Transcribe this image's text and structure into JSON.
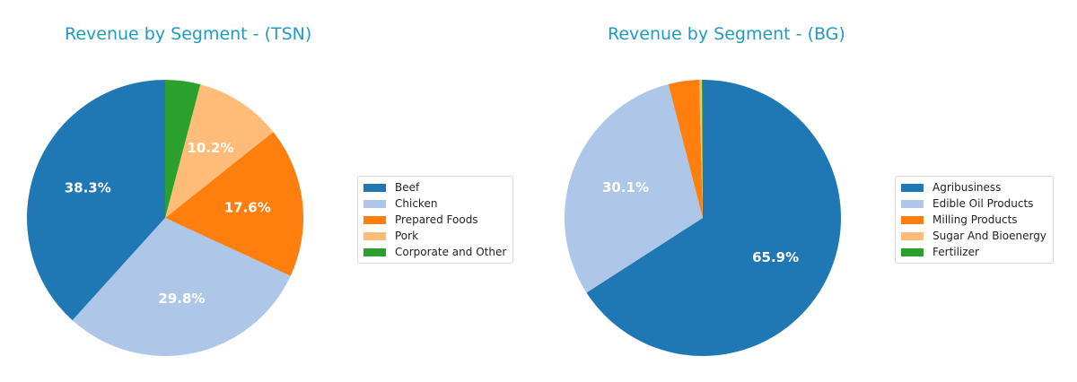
{
  "chart_data": [
    {
      "type": "pie",
      "title": "Revenue by Segment - (TSN)",
      "categories": [
        "Beef",
        "Chicken",
        "Prepared Foods",
        "Pork",
        "Corporate and Other"
      ],
      "values": [
        38.3,
        29.8,
        17.6,
        10.2,
        4.1
      ],
      "labels_shown": [
        "38.3%",
        "29.8%",
        "17.6%",
        "10.2%",
        ""
      ],
      "colors": [
        "#1f77b4",
        "#aec7e8",
        "#ff7f0e",
        "#ffbb78",
        "#2ca02c"
      ],
      "start_angle": 90,
      "direction": "counterclockwise",
      "legend_position": "right"
    },
    {
      "type": "pie",
      "title": "Revenue by Segment - (BG)",
      "categories": [
        "Agribusiness",
        "Edible Oil Products",
        "Milling Products",
        "Sugar And Bioenergy",
        "Fertilizer"
      ],
      "values": [
        65.9,
        30.1,
        3.6,
        0.3,
        0.1
      ],
      "labels_shown": [
        "65.9%",
        "30.1%",
        "",
        "",
        ""
      ],
      "colors": [
        "#1f77b4",
        "#aec7e8",
        "#ff7f0e",
        "#ffbb78",
        "#2ca02c"
      ],
      "start_angle": 90,
      "direction": "clockwise",
      "legend_position": "right"
    }
  ],
  "titles": {
    "left": "Revenue by Segment - (TSN)",
    "right": "Revenue by Segment - (BG)"
  },
  "legend_left": [
    "Beef",
    "Chicken",
    "Prepared Foods",
    "Pork",
    "Corporate and Other"
  ],
  "legend_right": [
    "Agribusiness",
    "Edible Oil Products",
    "Milling Products",
    "Sugar And Bioenergy",
    "Fertilizer"
  ]
}
